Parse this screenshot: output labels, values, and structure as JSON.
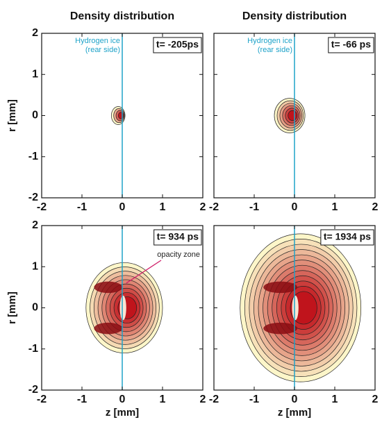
{
  "chart_data": [
    {
      "type": "contour",
      "title": "Density distribution",
      "ylabel": "r [mm]",
      "xlim": [
        -2,
        2
      ],
      "ylim": [
        -2,
        2
      ],
      "xticks": [
        -2,
        -1,
        0,
        1,
        2
      ],
      "yticks": [
        -2,
        -1,
        0,
        1,
        2
      ],
      "show_ytick_labels": true,
      "vline": {
        "x": 0,
        "color": "#1fa3c9"
      },
      "ice_label": [
        "Hydrogen ice",
        "(rear side)"
      ],
      "time_label": "t= -205ps"
    },
    {
      "type": "contour",
      "title": "Density distribution",
      "xlim": [
        -2,
        2
      ],
      "ylim": [
        -2,
        2
      ],
      "xticks": [
        -2,
        -1,
        0,
        1,
        2
      ],
      "yticks": [
        -2,
        -1,
        0,
        1,
        2
      ],
      "show_ytick_labels": false,
      "vline": {
        "x": 0,
        "color": "#1fa3c9"
      },
      "ice_label": [
        "Hydrogen ice",
        "(rear side)"
      ],
      "time_label": "t= -66 ps"
    },
    {
      "type": "contour",
      "xlabel": "z [mm]",
      "ylabel": "r [mm]",
      "xlim": [
        -2,
        2
      ],
      "ylim": [
        -2,
        2
      ],
      "xticks": [
        -2,
        -1,
        0,
        1,
        2
      ],
      "yticks": [
        -2,
        -1,
        0,
        1,
        2
      ],
      "show_ytick_labels": true,
      "vline": {
        "x": 0,
        "color": "#1fa3c9"
      },
      "time_label": "t= 934 ps",
      "annotation": "opacity zone"
    },
    {
      "type": "contour",
      "xlabel": "z [mm]",
      "xlim": [
        -2,
        2
      ],
      "ylim": [
        -2,
        2
      ],
      "xticks": [
        -2,
        -1,
        0,
        1,
        2
      ],
      "yticks": [
        -2,
        -1,
        0,
        1,
        2
      ],
      "show_ytick_labels": false,
      "vline": {
        "x": 0,
        "color": "#1fa3c9"
      },
      "time_label": "t= 1934 ps"
    }
  ]
}
